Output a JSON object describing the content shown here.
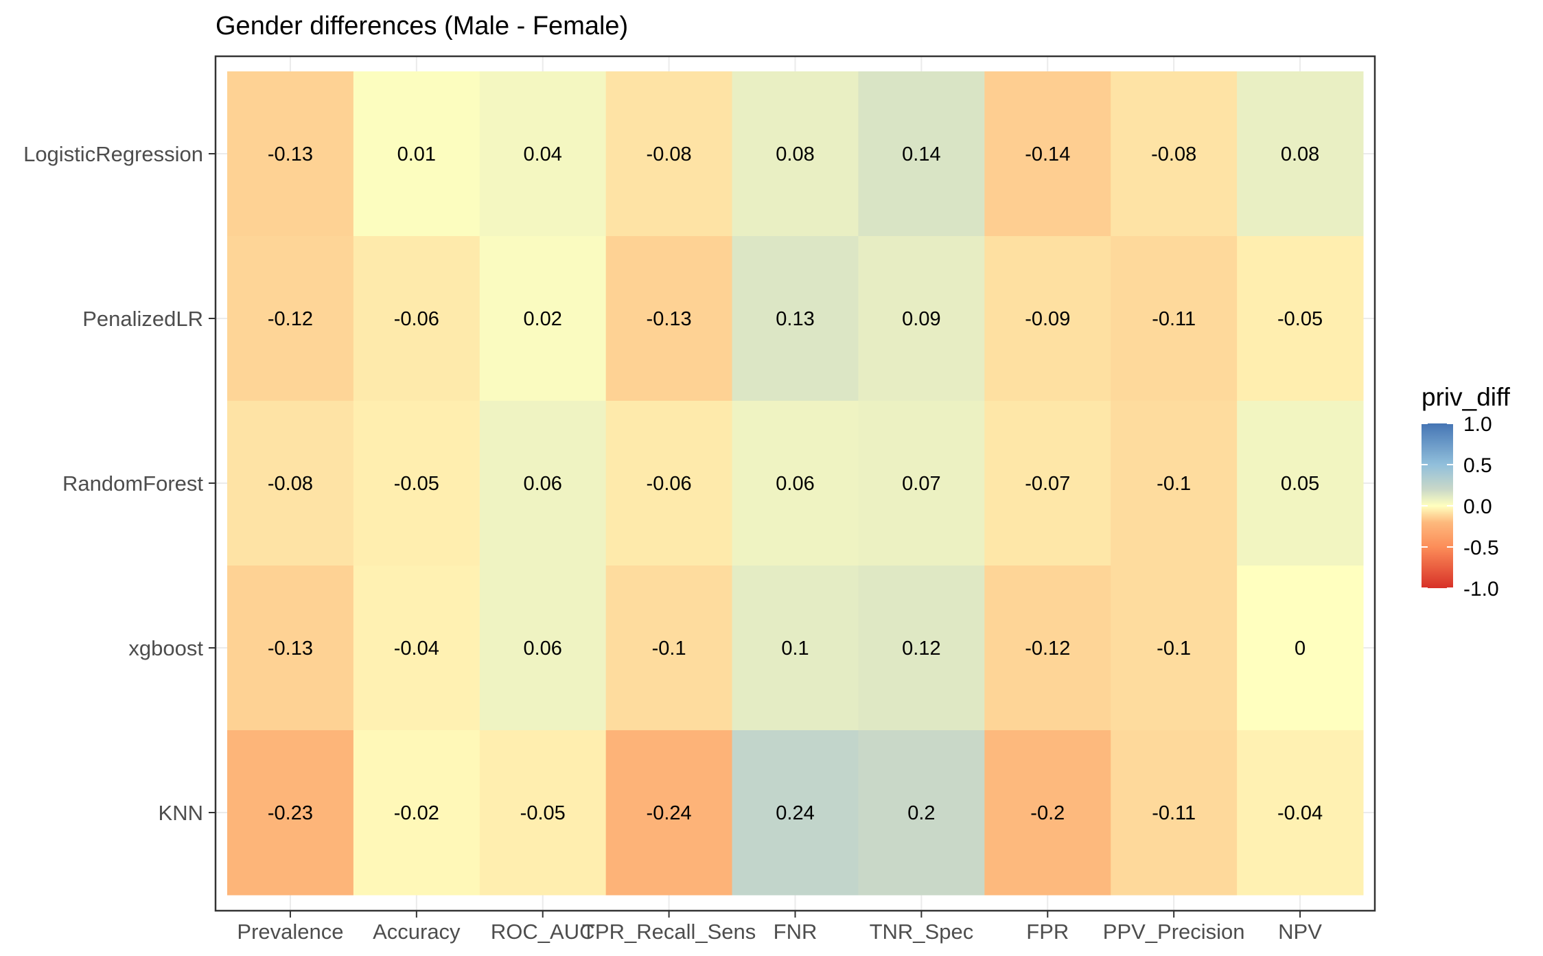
{
  "chart_data": {
    "type": "heatmap",
    "title": "Gender differences (Male - Female)",
    "x_categories": [
      "Prevalence",
      "Accuracy",
      "ROC_AUC",
      "TPR_Recall_Sens",
      "FNR",
      "TNR_Spec",
      "FPR",
      "PPV_Precision",
      "NPV"
    ],
    "y_categories": [
      "LogisticRegression",
      "PenalizedLR",
      "RandomForest",
      "xgboost",
      "KNN"
    ],
    "values": [
      [
        -0.13,
        0.01,
        0.04,
        -0.08,
        0.08,
        0.14,
        -0.14,
        -0.08,
        0.08
      ],
      [
        -0.12,
        -0.06,
        0.02,
        -0.13,
        0.13,
        0.09,
        -0.09,
        -0.11,
        -0.05
      ],
      [
        -0.08,
        -0.05,
        0.06,
        -0.06,
        0.06,
        0.07,
        -0.07,
        -0.1,
        0.05
      ],
      [
        -0.13,
        -0.04,
        0.06,
        -0.1,
        0.1,
        0.12,
        -0.12,
        -0.1,
        0
      ],
      [
        -0.23,
        -0.02,
        -0.05,
        -0.24,
        0.24,
        0.2,
        -0.2,
        -0.11,
        -0.04
      ]
    ],
    "legend": {
      "title": "priv_diff",
      "placement": "right",
      "range": [
        -1,
        1
      ],
      "ticks": [
        1.0,
        0.5,
        0.0,
        -0.5,
        -1.0
      ],
      "tick_labels": [
        "1.0",
        "0.5",
        "0.0",
        "-0.5",
        "-1.0"
      ]
    },
    "colors": {
      "negative": "#D73027",
      "neutral": "#FFFFBF",
      "positive": "#4575B4"
    },
    "grid": true
  }
}
